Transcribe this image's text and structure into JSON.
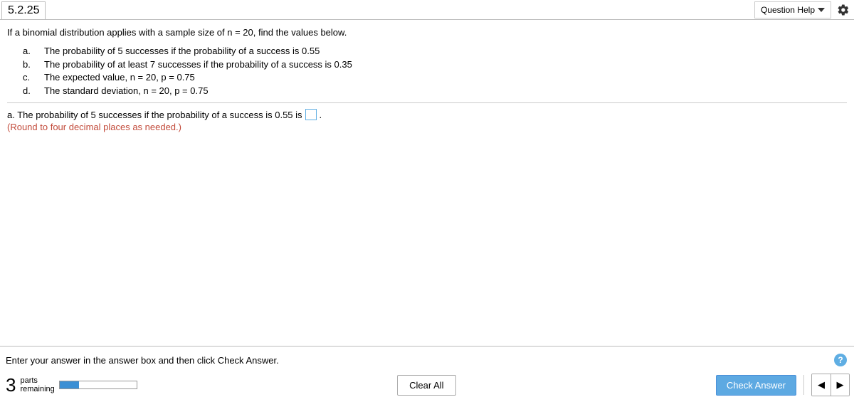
{
  "header": {
    "question_number": "5.2.25",
    "help_label": "Question Help"
  },
  "question": {
    "intro": "If a binomial distribution applies with a sample size of n = 20, find the values below.",
    "parts": [
      {
        "label": "a.",
        "text": "The probability of 5 successes if the probability of a success is 0.55"
      },
      {
        "label": "b.",
        "text": "The probability of at least 7 successes if the probability of a success is 0.35"
      },
      {
        "label": "c.",
        "text": "The expected value, n = 20, p = 0.75"
      },
      {
        "label": "d.",
        "text": "The standard deviation, n = 20, p = 0.75"
      }
    ],
    "prompt_prefix": "a. The probability of 5 successes if the probability of a success is 0.55 is",
    "prompt_suffix": ".",
    "hint": "(Round to four decimal places as needed.)"
  },
  "footer": {
    "instruction": "Enter your answer in the answer box and then click Check Answer.",
    "parts_count": "3",
    "parts_word1": "parts",
    "parts_word2": "remaining",
    "progress_percent": 25,
    "clear_label": "Clear All",
    "check_label": "Check Answer",
    "help_icon": "?",
    "prev_glyph": "◀",
    "next_glyph": "▶"
  },
  "colors": {
    "accent": "#5da9e2",
    "hint": "#c24a3a"
  }
}
